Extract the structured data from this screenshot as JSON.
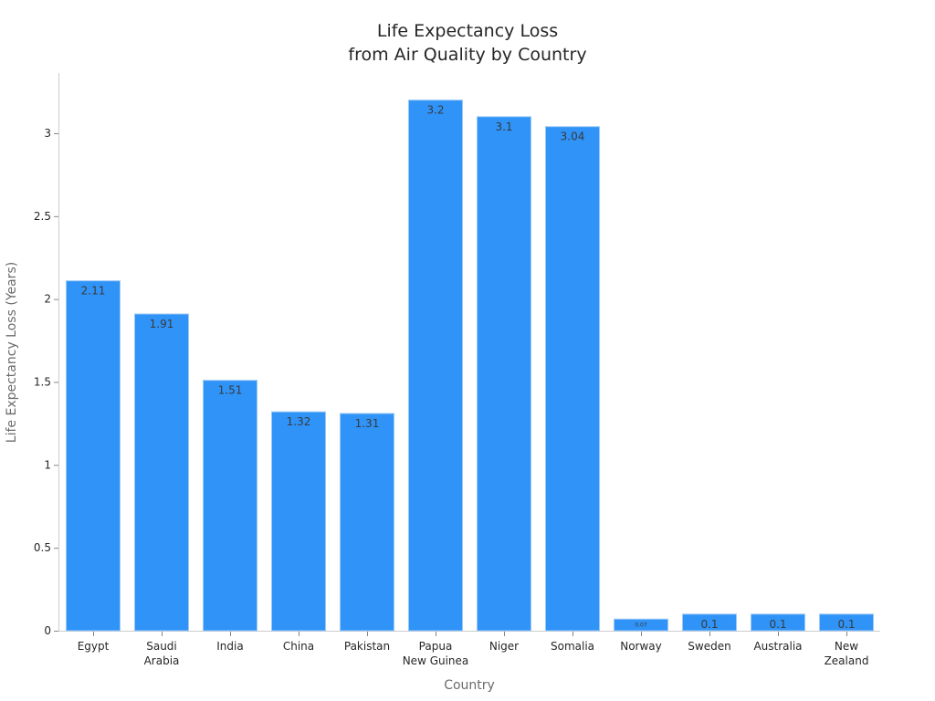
{
  "chart_data": {
    "type": "bar",
    "title": [
      "Life Expectancy Loss",
      "from Air Quality by Country"
    ],
    "xlabel": "Country",
    "ylabel": "Life Expectancy Loss (Years)",
    "categories": [
      [
        "Egypt"
      ],
      [
        "Saudi",
        "Arabia"
      ],
      [
        "India"
      ],
      [
        "China"
      ],
      [
        "Pakistan"
      ],
      [
        "Papua",
        "New Guinea"
      ],
      [
        "Niger"
      ],
      [
        "Somalia"
      ],
      [
        "Norway"
      ],
      [
        "Sweden"
      ],
      [
        "Australia"
      ],
      [
        "New",
        "Zealand"
      ]
    ],
    "values": [
      2.11,
      1.91,
      1.51,
      1.32,
      1.31,
      3.2,
      3.1,
      3.04,
      0.07,
      0.1,
      0.1,
      0.1
    ],
    "data_labels": [
      "2.11",
      "1.91",
      "1.51",
      "1.32",
      "1.31",
      "3.2",
      "3.1",
      "3.04",
      "0.07",
      "0.1",
      "0.1",
      "0.1"
    ],
    "yticks": [
      0,
      0.5,
      1,
      1.5,
      2,
      2.5,
      3
    ],
    "ytick_labels": [
      "0",
      "0.5",
      "1",
      "1.5",
      "2",
      "2.5",
      "3"
    ],
    "ylim": [
      0,
      3.35
    ],
    "grid": false,
    "legend": "none",
    "bar_color": "#2f93f8",
    "bar_edge_color": "#9cc9f5"
  }
}
